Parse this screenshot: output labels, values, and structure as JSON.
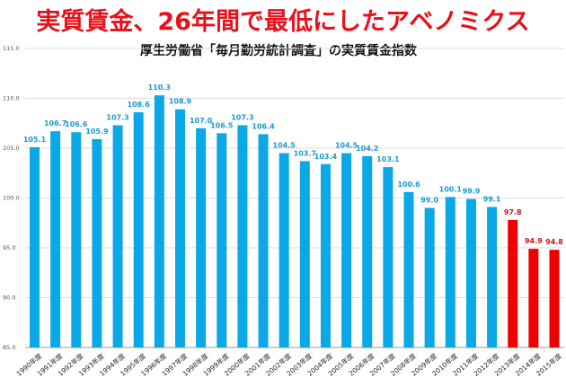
{
  "header": {
    "title": "実質賃金、26年間で最低にしたアベノミクス"
  },
  "chart_data": {
    "type": "bar",
    "title": "厚生労働省「毎月勤労統計調査」の実質賃金指数",
    "xlabel": "",
    "ylabel": "",
    "ylim": [
      85,
      115
    ],
    "yticks": [
      "85.0",
      "90.0",
      "95.0",
      "100.0",
      "105.0",
      "110.0",
      "115.0"
    ],
    "grid": true,
    "categories": [
      "1990年度",
      "1991年度",
      "1992年度",
      "1993年度",
      "1994年度",
      "1995年度",
      "1996年度",
      "1997年度",
      "1998年度",
      "1999年度",
      "2000年度",
      "2001年度",
      "2002年度",
      "2003年度",
      "2004年度",
      "2005年度",
      "2006年度",
      "2007年度",
      "2008年度",
      "2009年度",
      "2010年度",
      "2011年度",
      "2012年度",
      "2013年度",
      "2014年度",
      "2015年度"
    ],
    "values": [
      105.1,
      106.7,
      106.6,
      105.9,
      107.3,
      108.6,
      110.3,
      108.9,
      107.0,
      106.5,
      107.3,
      106.4,
      104.5,
      103.7,
      103.4,
      104.5,
      104.2,
      103.1,
      100.6,
      99.0,
      100.1,
      99.9,
      99.1,
      97.8,
      94.9,
      94.8
    ],
    "highlight_from": "2013年度",
    "colors": {
      "normal": "#0aa8e6",
      "highlight": "#f00000",
      "label_normal": "#1a9ad0",
      "label_highlight": "#d01010",
      "grid": "#dddddd"
    }
  }
}
